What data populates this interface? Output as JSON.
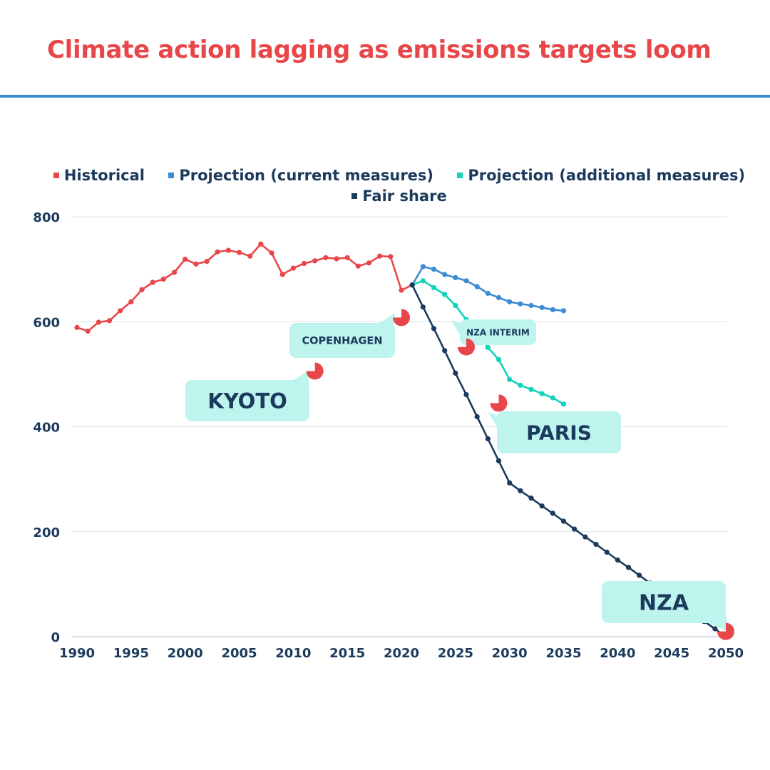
{
  "header": {
    "title": "Climate action lagging as emissions targets loom"
  },
  "colors": {
    "title": "#e8474a",
    "rule": "#3d8bd3",
    "text": "#1b3a5c",
    "grid": "#dde3ea",
    "callout": "#bdf5ee",
    "marker": "#e8474a"
  },
  "chart_data": {
    "type": "line",
    "title": "Climate action lagging as emissions targets loom",
    "xlabel": "",
    "ylabel": "",
    "xlim": [
      1990,
      2050
    ],
    "ylim": [
      0,
      800
    ],
    "x_ticks": [
      "1990",
      "1995",
      "2000",
      "2005",
      "2010",
      "2015",
      "2020",
      "2025",
      "2030",
      "2035",
      "2040",
      "2045",
      "2050"
    ],
    "y_ticks": [
      "0",
      "200",
      "400",
      "600",
      "800"
    ],
    "grid": "horizontal",
    "legend_position": "top-center",
    "series": [
      {
        "name": "Historical",
        "color": "#e8474a",
        "x": [
          1990,
          1991,
          1992,
          1993,
          1994,
          1995,
          1996,
          1997,
          1998,
          1999,
          2000,
          2001,
          2002,
          2003,
          2004,
          2005,
          2006,
          2007,
          2008,
          2009,
          2010,
          2011,
          2012,
          2013,
          2014,
          2015,
          2016,
          2017,
          2018,
          2019,
          2020,
          2021
        ],
        "values": [
          589,
          582,
          599,
          602,
          621,
          638,
          661,
          675,
          681,
          694,
          719,
          710,
          715,
          733,
          736,
          732,
          725,
          748,
          731,
          690,
          702,
          711,
          716,
          722,
          720,
          722,
          706,
          712,
          725,
          724,
          660,
          670
        ]
      },
      {
        "name": "Projection (current measures)",
        "color": "#3d8bd3",
        "x": [
          2021,
          2022,
          2023,
          2024,
          2025,
          2026,
          2027,
          2028,
          2029,
          2030,
          2031,
          2032,
          2033,
          2034,
          2035
        ],
        "values": [
          670,
          705,
          700,
          690,
          684,
          678,
          667,
          654,
          646,
          638,
          634,
          631,
          627,
          623,
          621
        ]
      },
      {
        "name": "Projection (additional measures)",
        "color": "#12d3bb",
        "x": [
          2021,
          2022,
          2023,
          2024,
          2025,
          2026,
          2027,
          2028,
          2029,
          2030,
          2031,
          2032,
          2033,
          2034,
          2035
        ],
        "values": [
          670,
          678,
          665,
          652,
          631,
          604,
          582,
          551,
          528,
          490,
          479,
          471,
          463,
          455,
          443
        ]
      },
      {
        "name": "Fair share",
        "color": "#1b3a5c",
        "x": [
          2021,
          2022,
          2023,
          2024,
          2025,
          2026,
          2027,
          2028,
          2029,
          2030,
          2031,
          2032,
          2033,
          2034,
          2035,
          2036,
          2037,
          2038,
          2039,
          2040,
          2041,
          2042,
          2043,
          2044,
          2045,
          2046,
          2047,
          2048,
          2049,
          2050
        ],
        "values": [
          670,
          628,
          587,
          545,
          502,
          461,
          419,
          377,
          335,
          293,
          278,
          264,
          249,
          235,
          220,
          205,
          190,
          176,
          161,
          146,
          132,
          117,
          102,
          88,
          73,
          58,
          44,
          29,
          15,
          0
        ]
      }
    ],
    "milestones": [
      {
        "label": "KYOTO",
        "x": 2012,
        "y": 506
      },
      {
        "label": "COPENHAGEN",
        "x": 2020,
        "y": 608
      },
      {
        "label": "NZA INTERIM",
        "x": 2026,
        "y": 552
      },
      {
        "label": "PARIS",
        "x": 2029,
        "y": 445
      },
      {
        "label": "NZA",
        "x": 2050,
        "y": 10
      }
    ]
  }
}
